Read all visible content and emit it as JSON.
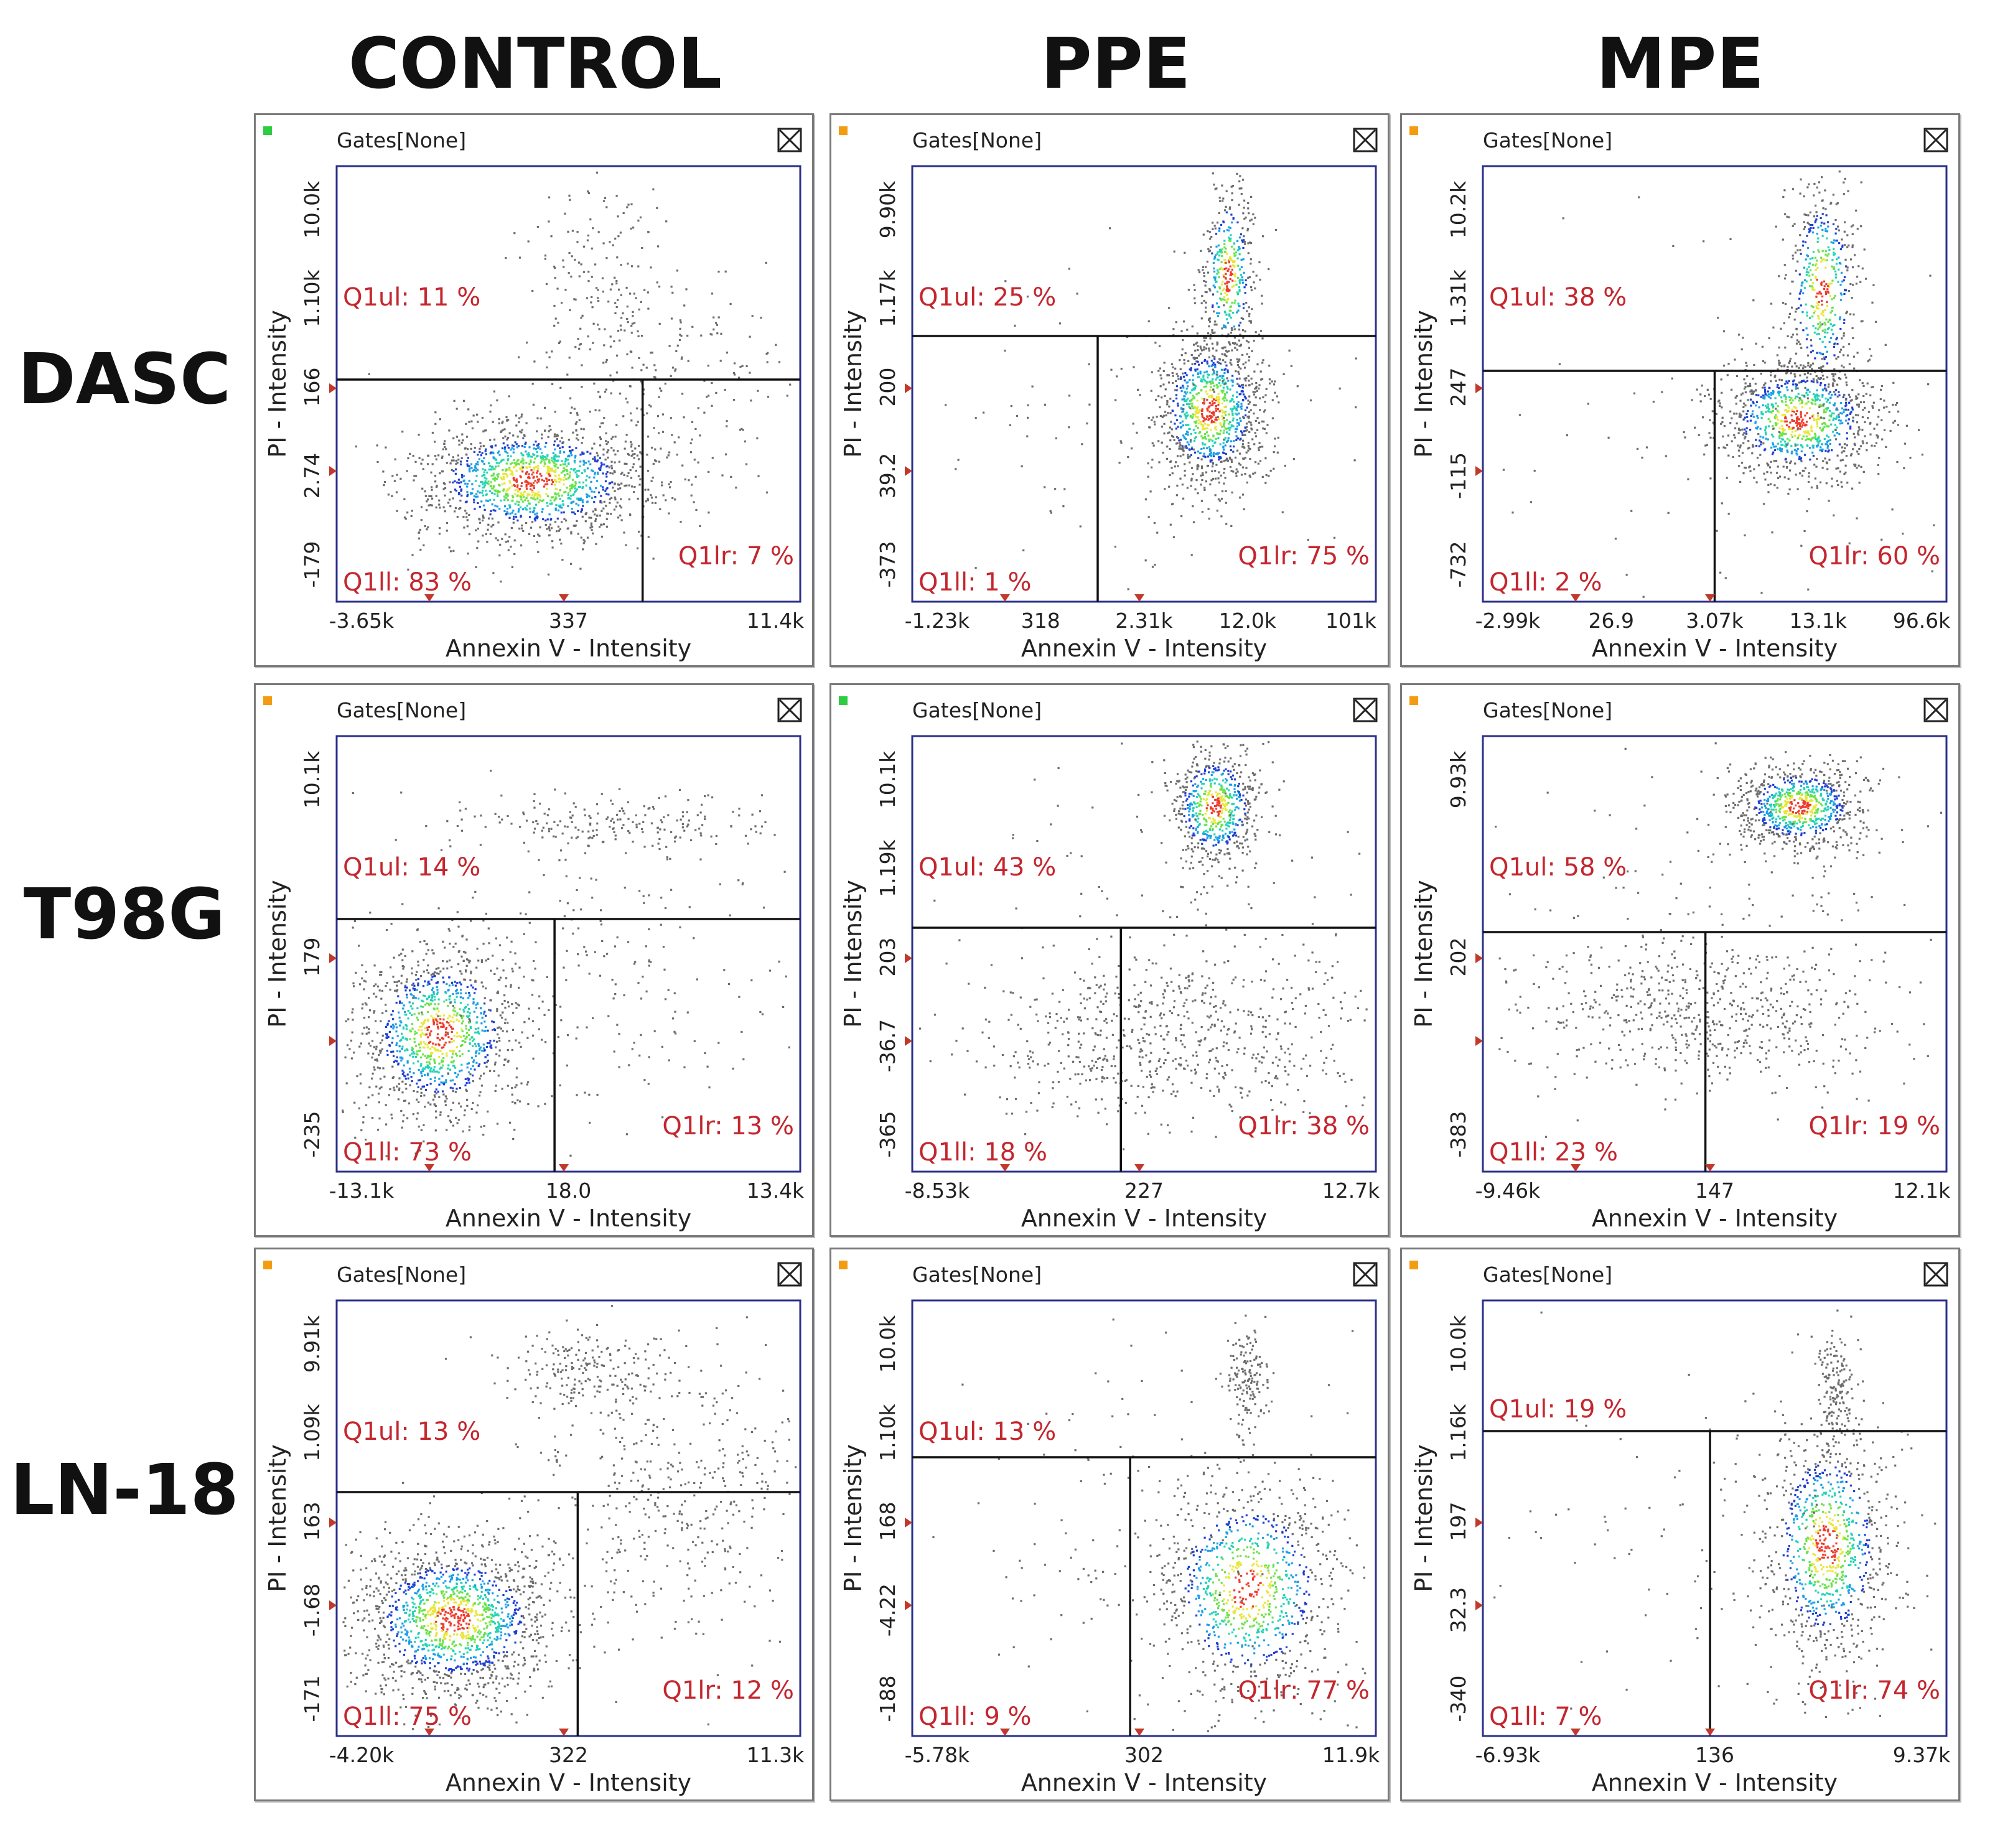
{
  "columns": [
    "CONTROL",
    "PPE",
    "MPE"
  ],
  "rows": [
    "DASC",
    "T98G",
    "LN-18"
  ],
  "colors": {
    "quadrant_label": "#c4262e",
    "frame": "#2a2f8a",
    "dot": "#707070",
    "marker": "#c0392b"
  },
  "chart_data": [
    {
      "type": "scatter",
      "row": "DASC",
      "column": "CONTROL",
      "gates_label": "Gates[None]",
      "status_color": "#2ecc40",
      "xlabel": "Annexin V - Intensity",
      "ylabel": "PI - Intensity",
      "xticks": [
        "-3.65k",
        "337",
        "11.4k"
      ],
      "yticks": [
        "10.0k",
        "1.10k",
        "166",
        "2.74",
        "-179"
      ],
      "quadrants": {
        "ul": "Q1ul: 11 %",
        "ll": "Q1ll: 83 %",
        "lr": "Q1lr: 7 %"
      }
    },
    {
      "type": "scatter",
      "row": "DASC",
      "column": "PPE",
      "gates_label": "Gates[None]",
      "status_color": "#f39c12",
      "xlabel": "Annexin V - Intensity",
      "ylabel": "PI - Intensity",
      "xticks": [
        "-1.23k",
        "318",
        "2.31k",
        "12.0k",
        "101k"
      ],
      "yticks": [
        "9.90k",
        "1.17k",
        "200",
        "39.2",
        "-373"
      ],
      "quadrants": {
        "ul": "Q1ul: 25 %",
        "ll": "Q1ll: 1 %",
        "lr": "Q1lr: 75 %"
      }
    },
    {
      "type": "scatter",
      "row": "DASC",
      "column": "MPE",
      "gates_label": "Gates[None]",
      "status_color": "#f39c12",
      "xlabel": "Annexin V - Intensity",
      "ylabel": "PI - Intensity",
      "xticks": [
        "-2.99k",
        "26.9",
        "3.07k",
        "13.1k",
        "96.6k"
      ],
      "yticks": [
        "10.2k",
        "1.31k",
        "247",
        "-115",
        "-732"
      ],
      "quadrants": {
        "ul": "Q1ul: 38 %",
        "ll": "Q1ll: 2 %",
        "lr": "Q1lr: 60 %"
      }
    },
    {
      "type": "scatter",
      "row": "T98G",
      "column": "CONTROL",
      "gates_label": "Gates[None]",
      "status_color": "#f39c12",
      "xlabel": "Annexin V - Intensity",
      "ylabel": "PI - Intensity",
      "xticks": [
        "-13.1k",
        "18.0",
        "13.4k"
      ],
      "yticks": [
        "10.1k",
        "179",
        "-235"
      ],
      "quadrants": {
        "ul": "Q1ul: 14 %",
        "ll": "Q1ll: 73 %",
        "lr": "Q1lr: 13 %"
      }
    },
    {
      "type": "scatter",
      "row": "T98G",
      "column": "PPE",
      "gates_label": "Gates[None]",
      "status_color": "#2ecc40",
      "xlabel": "Annexin V - Intensity",
      "ylabel": "PI - Intensity",
      "xticks": [
        "-8.53k",
        "227",
        "12.7k"
      ],
      "yticks": [
        "10.1k",
        "1.19k",
        "203",
        "-36.7",
        "-365"
      ],
      "quadrants": {
        "ul": "Q1ul: 43 %",
        "ll": "Q1ll: 18 %",
        "lr": "Q1lr: 38 %"
      }
    },
    {
      "type": "scatter",
      "row": "T98G",
      "column": "MPE",
      "gates_label": "Gates[None]",
      "status_color": "#f39c12",
      "xlabel": "Annexin V - Intensity",
      "ylabel": "PI - Intensity",
      "xticks": [
        "-9.46k",
        "147",
        "12.1k"
      ],
      "yticks": [
        "9.93k",
        "202",
        "-383"
      ],
      "quadrants": {
        "ul": "Q1ul: 58 %",
        "ll": "Q1ll: 23 %",
        "lr": "Q1lr: 19 %"
      }
    },
    {
      "type": "scatter",
      "row": "LN-18",
      "column": "CONTROL",
      "gates_label": "Gates[None]",
      "status_color": "#f39c12",
      "xlabel": "Annexin V - Intensity",
      "ylabel": "PI - Intensity",
      "xticks": [
        "-4.20k",
        "322",
        "11.3k"
      ],
      "yticks": [
        "9.91k",
        "1.09k",
        "163",
        "-1.68",
        "-171"
      ],
      "quadrants": {
        "ul": "Q1ul: 13 %",
        "ll": "Q1ll: 75 %",
        "lr": "Q1lr: 12 %"
      }
    },
    {
      "type": "scatter",
      "row": "LN-18",
      "column": "PPE",
      "gates_label": "Gates[None]",
      "status_color": "#f39c12",
      "xlabel": "Annexin V - Intensity",
      "ylabel": "PI - Intensity",
      "xticks": [
        "-5.78k",
        "302",
        "11.9k"
      ],
      "yticks": [
        "10.0k",
        "1.10k",
        "168",
        "-4.22",
        "-188"
      ],
      "quadrants": {
        "ul": "Q1ul: 13 %",
        "ll": "Q1ll: 9 %",
        "lr": "Q1lr: 77 %"
      }
    },
    {
      "type": "scatter",
      "row": "LN-18",
      "column": "MPE",
      "gates_label": "Gates[None]",
      "status_color": "#f39c12",
      "xlabel": "Annexin V - Intensity",
      "ylabel": "PI - Intensity",
      "xticks": [
        "-6.93k",
        "136",
        "9.37k"
      ],
      "yticks": [
        "10.0k",
        "1.16k",
        "197",
        "32.3",
        "-340"
      ],
      "quadrants": {
        "ul": "Q1ul: 19 %",
        "ll": "Q1ll: 7 %",
        "lr": "Q1lr: 74 %"
      }
    }
  ]
}
